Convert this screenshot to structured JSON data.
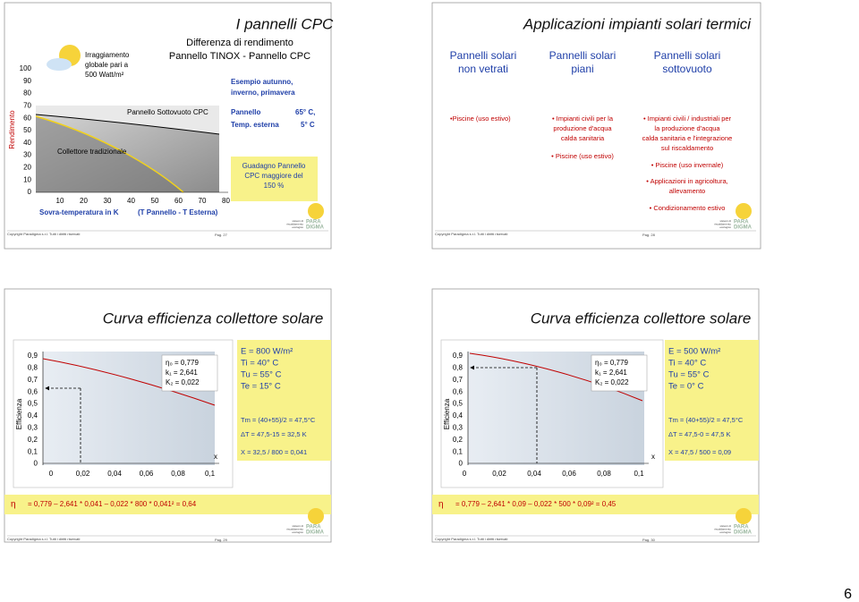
{
  "slides": [
    {
      "title": "I pannelli CPC",
      "subtitle": [
        "Differenza di rendimento",
        "Pannello TINOX - Pannello CPC"
      ],
      "chart": {
        "axis_label": "Rendimento",
        "yticks": [
          "100",
          "90",
          "80",
          "70",
          "60",
          "50",
          "40",
          "30",
          "20",
          "10",
          "0"
        ],
        "xticks": [
          "10",
          "20",
          "30",
          "40",
          "50",
          "60",
          "70",
          "80"
        ],
        "x_label": [
          "Sovra-temperatura in K",
          "(T Pannello - T Esterna)"
        ],
        "legend": [
          "Irraggiamento",
          "globale pari a",
          "500 Watt/m²"
        ],
        "curves": [
          "Pannello Sottovuoto CPC",
          "Collettore tradizionale"
        ]
      },
      "notes": [
        "Esempio autunno,",
        "inverno, primavera"
      ],
      "conditions": [
        [
          "Pannello",
          "65° C,"
        ],
        [
          "Temp. esterna",
          "5° C"
        ]
      ],
      "highlight": [
        "Guadagno Pannello",
        "CPC maggiore del",
        "150 %"
      ],
      "footer": {
        "copyright": "Copyright Paradigma s.r.l. Tutti i diritti riservati",
        "page": "Pag. 27",
        "logo": [
          "PARA",
          "DIGMA"
        ],
        "tagline": [
          "sistemi di",
          "riscaldamento",
          "ecologico"
        ]
      }
    },
    {
      "title": "Applicazioni impianti solari termici",
      "columns": [
        {
          "header": [
            "Pannelli solari",
            "non vetrati"
          ],
          "items": [
            "•Piscine (uso estivo)"
          ]
        },
        {
          "header": [
            "Pannelli solari",
            "piani"
          ],
          "items": [
            "• Impianti civili per la",
            "produzione d'acqua",
            "calda sanitaria",
            "• Piscine (uso estivo)"
          ]
        },
        {
          "header": [
            "Pannelli solari",
            "sottovuoto"
          ],
          "items": [
            "• Impianti civili / industriali per",
            "la produzione d'acqua",
            "calda sanitaria e l'integrazione",
            "sul riscaldamento",
            "• Piscine (uso invernale)",
            "• Applicazioni in agricoltura,",
            "allevamento",
            "• Condizionamento estivo"
          ]
        }
      ],
      "footer": {
        "copyright": "Copyright Paradigma s.r.l. Tutti i diritti riservati",
        "page": "Pag. 28",
        "logo": [
          "PARA",
          "DIGMA"
        ],
        "tagline": [
          "sistemi di",
          "riscaldamento",
          "ecologico"
        ]
      }
    },
    {
      "title": "Curva efficienza collettore solare",
      "chart": {
        "axis_label": "Efficienza",
        "yticks": [
          "0,9",
          "0,8",
          "0,7",
          "0,6",
          "0,5",
          "0,4",
          "0,3",
          "0,2",
          "0,1",
          "0"
        ],
        "xticks": [
          "0",
          "0,02",
          "0,04",
          "0,06",
          "0,08",
          "0,1"
        ],
        "x_symbol": "x",
        "params": [
          "η₀ =  0,779",
          "k₁ = 2,641",
          "K₂ = 0,022"
        ]
      },
      "conditions": [
        "E = 800 W/m²",
        "Ti = 40° C",
        "Tu = 55° C",
        "Te = 15° C"
      ],
      "calc": [
        "Tm = (40+55)/2 = 47,5°C",
        "ΔT = 47,5-15 = 32,5 K",
        "X = 32,5 / 800 = 0,041"
      ],
      "formula": {
        "symbol": "η",
        "text": "= 0,779 – 2,641 * 0,041 – 0,022 * 800 * 0,041² = 0,64"
      },
      "footer": {
        "copyright": "Copyright Paradigma s.r.l. Tutti i diritti riservati",
        "page": "Pag. 29",
        "logo": [
          "PARA",
          "DIGMA"
        ],
        "tagline": [
          "sistemi di",
          "riscaldamento",
          "ecologico"
        ]
      }
    },
    {
      "title": "Curva efficienza collettore solare",
      "chart": {
        "axis_label": "Efficienza",
        "yticks": [
          "0,9",
          "0,8",
          "0,7",
          "0,6",
          "0,5",
          "0,4",
          "0,3",
          "0,2",
          "0,1",
          "0"
        ],
        "xticks": [
          "0",
          "0,02",
          "0,04",
          "0,06",
          "0,08",
          "0,1"
        ],
        "x_symbol": "x",
        "params": [
          "η₀ =  0,779",
          "k₁ = 2,641",
          "K₂ = 0,022"
        ]
      },
      "conditions": [
        "E = 500 W/m²",
        "Ti = 40° C",
        "Tu = 55° C",
        "Te = 0° C"
      ],
      "calc": [
        "Tm = (40+55)/2 = 47,5°C",
        "ΔT = 47,5-0 = 47,5 K",
        "X = 47,5 / 500 = 0,09"
      ],
      "formula": {
        "symbol": "η",
        "text": "= 0,779 – 2,641 * 0,09 – 0,022 * 500 * 0,09² = 0,45"
      },
      "footer": {
        "copyright": "Copyright Paradigma s.r.l. Tutti i diritti riservati",
        "page": "Pag. 30",
        "logo": [
          "PARA",
          "DIGMA"
        ],
        "tagline": [
          "sistemi di",
          "riscaldamento",
          "ecologico"
        ]
      }
    }
  ],
  "page_number": "6"
}
